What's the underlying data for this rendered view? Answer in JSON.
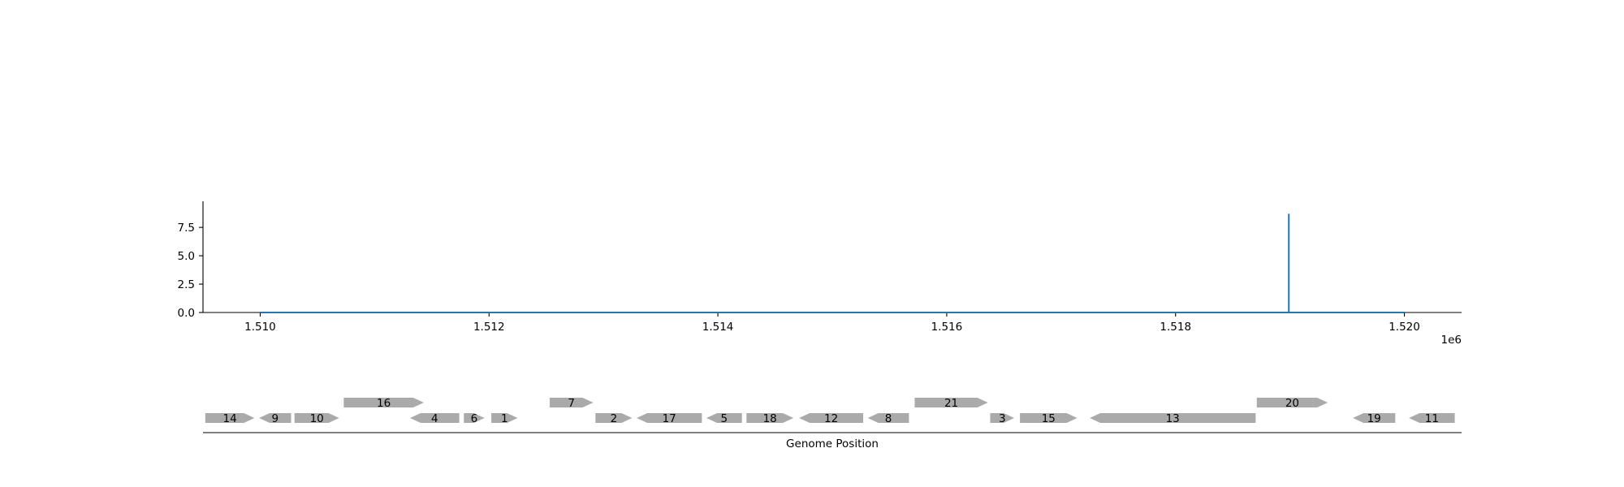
{
  "chart_data": [
    {
      "type": "line",
      "title": "",
      "xlabel": "",
      "ylabel": "",
      "x_offset_label": "1e6",
      "xlim": [
        1509500,
        1520500
      ],
      "ylim": [
        0,
        9.8
      ],
      "x_ticks": [
        1510000,
        1512000,
        1514000,
        1516000,
        1518000,
        1520000
      ],
      "x_tick_labels": [
        "1.510",
        "1.512",
        "1.514",
        "1.516",
        "1.518",
        "1.520"
      ],
      "y_ticks": [
        0,
        2.5,
        5.0,
        7.5
      ],
      "y_tick_labels": [
        "0.0",
        "2.5",
        "5.0",
        "7.5"
      ],
      "grid": false,
      "line_color": "#1f77b4",
      "series": [
        {
          "x": [
            1510000,
            1518990,
            1518990,
            1518990,
            1520000
          ],
          "y": [
            0,
            0,
            8.7,
            0,
            0
          ]
        }
      ]
    },
    {
      "type": "gene_map",
      "xlabel": "Genome Position",
      "xlim": [
        1509500,
        1520500
      ],
      "gene_color": "#aaaaaa",
      "genes": [
        {
          "label": "14",
          "start": 1509520,
          "end": 1509950,
          "strand": 1,
          "row": 0
        },
        {
          "label": "9",
          "start": 1509990,
          "end": 1510270,
          "strand": -1,
          "row": 0
        },
        {
          "label": "10",
          "start": 1510300,
          "end": 1510690,
          "strand": 1,
          "row": 0
        },
        {
          "label": "16",
          "start": 1510730,
          "end": 1511430,
          "strand": 1,
          "row": 1
        },
        {
          "label": "4",
          "start": 1511310,
          "end": 1511740,
          "strand": -1,
          "row": 0
        },
        {
          "label": "6",
          "start": 1511780,
          "end": 1511960,
          "strand": 1,
          "row": 0
        },
        {
          "label": "1",
          "start": 1512020,
          "end": 1512250,
          "strand": 1,
          "row": 0
        },
        {
          "label": "7",
          "start": 1512530,
          "end": 1512910,
          "strand": 1,
          "row": 1
        },
        {
          "label": "2",
          "start": 1512930,
          "end": 1513250,
          "strand": 1,
          "row": 0
        },
        {
          "label": "17",
          "start": 1513290,
          "end": 1513860,
          "strand": -1,
          "row": 0
        },
        {
          "label": "5",
          "start": 1513900,
          "end": 1514210,
          "strand": -1,
          "row": 0
        },
        {
          "label": "18",
          "start": 1514250,
          "end": 1514660,
          "strand": 1,
          "row": 0
        },
        {
          "label": "12",
          "start": 1514710,
          "end": 1515270,
          "strand": -1,
          "row": 0
        },
        {
          "label": "8",
          "start": 1515310,
          "end": 1515670,
          "strand": -1,
          "row": 0
        },
        {
          "label": "21",
          "start": 1515720,
          "end": 1516360,
          "strand": 1,
          "row": 1
        },
        {
          "label": "3",
          "start": 1516380,
          "end": 1516590,
          "strand": 1,
          "row": 0
        },
        {
          "label": "15",
          "start": 1516640,
          "end": 1517140,
          "strand": 1,
          "row": 0
        },
        {
          "label": "13",
          "start": 1517250,
          "end": 1518700,
          "strand": -1,
          "row": 0
        },
        {
          "label": "20",
          "start": 1518710,
          "end": 1519330,
          "strand": 1,
          "row": 1
        },
        {
          "label": "19",
          "start": 1519550,
          "end": 1519920,
          "strand": -1,
          "row": 0
        },
        {
          "label": "11",
          "start": 1520040,
          "end": 1520440,
          "strand": -1,
          "row": 0
        }
      ]
    }
  ]
}
